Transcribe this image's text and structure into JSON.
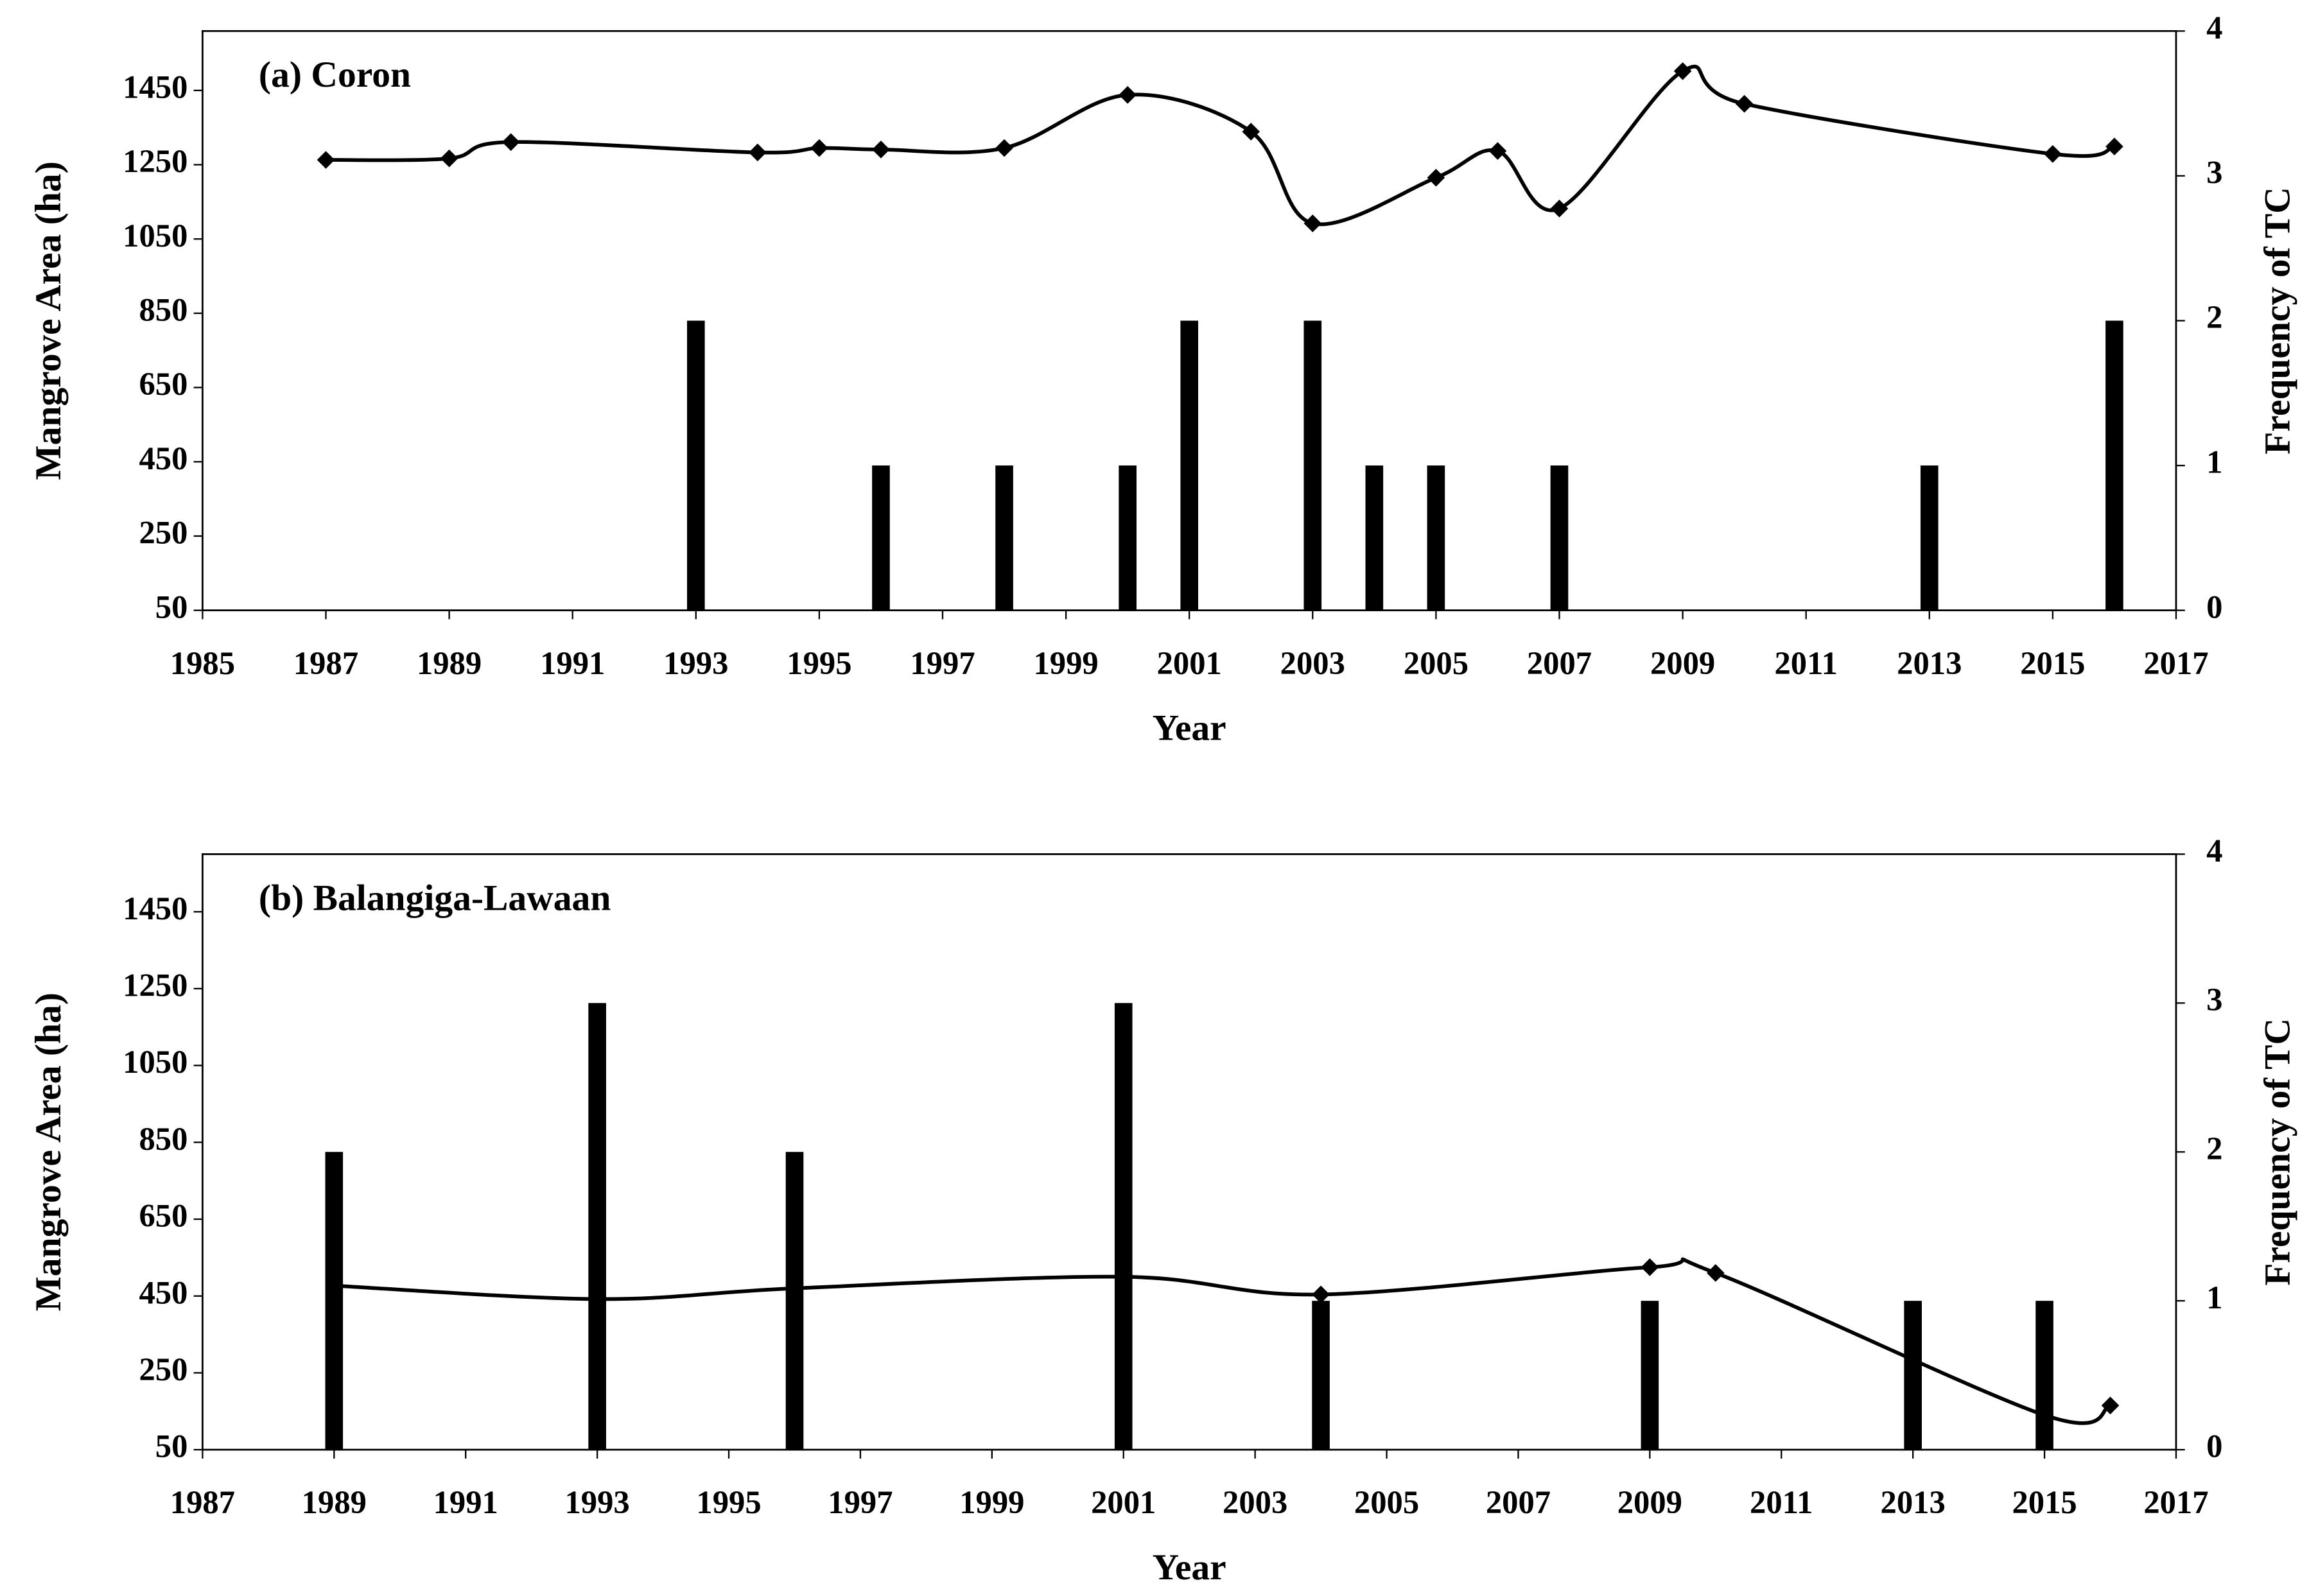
{
  "chart_data": [
    {
      "type": "combo",
      "title": "(a) Coron",
      "xlabel": "Year",
      "ylabel": "Mangrove Area (ha)",
      "y2label": "Frequency of TC",
      "xlim": [
        1985,
        2017
      ],
      "xticks": [
        1985,
        1987,
        1989,
        1991,
        1993,
        1995,
        1997,
        1999,
        2001,
        2003,
        2005,
        2007,
        2009,
        2011,
        2013,
        2015,
        2017
      ],
      "ylim": [
        50,
        1610
      ],
      "yticks": [
        50,
        250,
        450,
        650,
        850,
        1050,
        1250,
        1450
      ],
      "y2lim": [
        0,
        4
      ],
      "y2ticks": [
        0,
        1,
        2,
        3,
        4
      ],
      "series": [
        {
          "type": "line",
          "color": "#000000",
          "x": [
            1987,
            1989,
            1990,
            1994,
            1995,
            1996,
            1998,
            2000,
            2002,
            2003,
            2005,
            2006,
            2007,
            2009,
            2010,
            2015,
            2016
          ],
          "values": [
            1263,
            1267,
            1311,
            1283,
            1295,
            1291,
            1295,
            1438,
            1339,
            1092,
            1215,
            1287,
            1132,
            1502,
            1414,
            1279,
            1299
          ]
        },
        {
          "type": "bar",
          "axis": "y2",
          "color": "#000000",
          "x": [
            1993,
            1996,
            1998,
            2000,
            2001,
            2003,
            2004,
            2005,
            2007,
            2013,
            2016
          ],
          "values": [
            2,
            1,
            1,
            1,
            2,
            2,
            1,
            1,
            1,
            1,
            2
          ]
        }
      ]
    },
    {
      "type": "combo",
      "title": "(b) Balangiga-Lawaan",
      "xlabel": "Year",
      "ylabel": "Mangrove Area (ha)",
      "y2label": "Frequency of TC",
      "xlim": [
        1987,
        2017
      ],
      "xticks": [
        1987,
        1989,
        1991,
        1993,
        1995,
        1997,
        1999,
        2001,
        2003,
        2005,
        2007,
        2009,
        2011,
        2013,
        2015,
        2017
      ],
      "ylim": [
        50,
        1600
      ],
      "yticks": [
        50,
        250,
        450,
        650,
        850,
        1050,
        1250,
        1450
      ],
      "y2lim": [
        0,
        4
      ],
      "y2ticks": [
        0,
        1,
        2,
        3,
        4
      ],
      "series": [
        {
          "type": "line",
          "color": "#000000",
          "x": [
            1989,
            1993,
            1996,
            2001,
            2004,
            2009,
            2010,
            2015,
            2016
          ],
          "values": [
            477,
            442,
            470,
            500,
            454,
            525,
            510,
            140,
            165
          ]
        },
        {
          "type": "bar",
          "axis": "y2",
          "color": "#000000",
          "x": [
            1989,
            1993,
            1996,
            2001,
            2004,
            2009,
            2013,
            2015
          ],
          "values": [
            2,
            3,
            2,
            3,
            1,
            1,
            1,
            1
          ]
        }
      ]
    }
  ]
}
